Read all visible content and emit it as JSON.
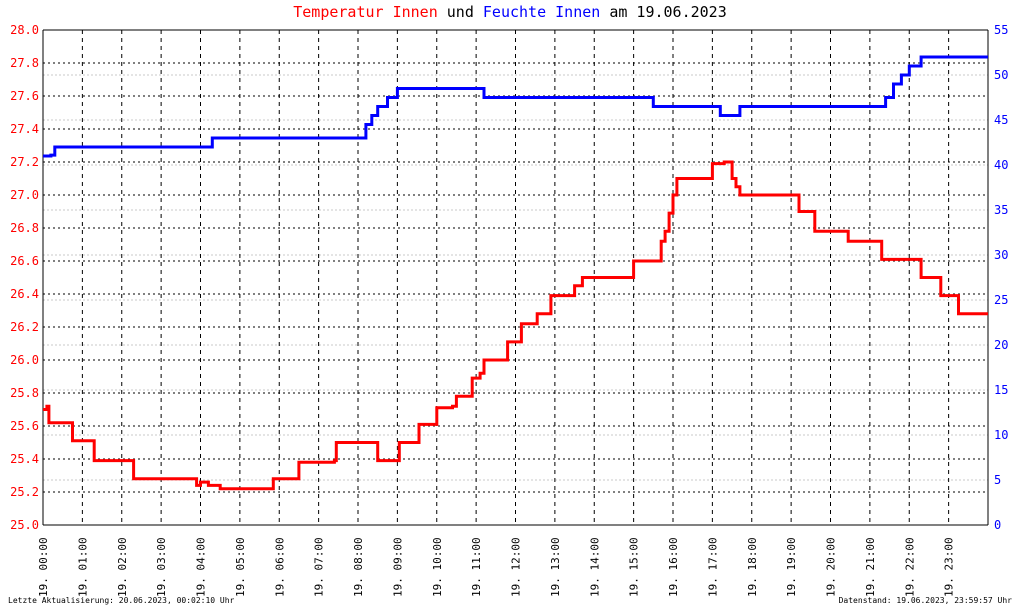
{
  "title": {
    "part1": "Temperatur Innen",
    "part2": " und ",
    "part3": "Feuchte Innen",
    "part4": " am 19.06.2023",
    "color_temp": "#ff0000",
    "color_hum": "#0000ff",
    "color_text": "#000000"
  },
  "footer": {
    "left": "Letzte Aktualisierung: 20.06.2023, 00:02:10 Uhr",
    "right": "Datenstand: 19.06.2023, 23:59:57 Uhr"
  },
  "chart_data": {
    "type": "line",
    "title": "Temperatur Innen und Feuchte Innen am 19.06.2023",
    "x_ticks": [
      "19. 00:00",
      "19. 01:00",
      "19. 02:00",
      "19. 03:00",
      "19. 04:00",
      "19. 05:00",
      "19. 06:00",
      "19. 07:00",
      "19. 08:00",
      "19. 09:00",
      "19. 10:00",
      "19. 11:00",
      "19. 12:00",
      "19. 13:00",
      "19. 14:00",
      "19. 15:00",
      "19. 16:00",
      "19. 17:00",
      "19. 18:00",
      "19. 19:00",
      "19. 20:00",
      "19. 21:00",
      "19. 22:00",
      "19. 23:00"
    ],
    "y_left": {
      "min": 25.0,
      "max": 28.0,
      "ticks": [
        "25.0",
        "25.2",
        "25.4",
        "25.6",
        "25.8",
        "26.0",
        "26.2",
        "26.4",
        "26.6",
        "26.8",
        "27.0",
        "27.2",
        "27.4",
        "27.6",
        "27.8",
        "28.0"
      ],
      "color": "#ff0000"
    },
    "y_right": {
      "min": 0,
      "max": 55,
      "ticks": [
        "0",
        "5",
        "10",
        "15",
        "20",
        "25",
        "30",
        "35",
        "40",
        "45",
        "50",
        "55"
      ],
      "color": "#0000ff"
    },
    "grid": true,
    "series": [
      {
        "name": "Temperatur Innen",
        "axis": "left",
        "color": "#ff0000",
        "points": [
          [
            0.0,
            25.7
          ],
          [
            0.1,
            25.72
          ],
          [
            0.15,
            25.62
          ],
          [
            0.7,
            25.62
          ],
          [
            0.75,
            25.51
          ],
          [
            1.25,
            25.51
          ],
          [
            1.3,
            25.39
          ],
          [
            2.2,
            25.39
          ],
          [
            2.3,
            25.28
          ],
          [
            3.8,
            25.28
          ],
          [
            3.9,
            25.24
          ],
          [
            4.0,
            25.26
          ],
          [
            4.2,
            25.24
          ],
          [
            4.5,
            25.22
          ],
          [
            5.8,
            25.22
          ],
          [
            5.85,
            25.28
          ],
          [
            6.4,
            25.28
          ],
          [
            6.5,
            25.38
          ],
          [
            7.4,
            25.39
          ],
          [
            7.45,
            25.5
          ],
          [
            8.45,
            25.5
          ],
          [
            8.5,
            25.39
          ],
          [
            9.0,
            25.39
          ],
          [
            9.05,
            25.5
          ],
          [
            9.5,
            25.5
          ],
          [
            9.55,
            25.61
          ],
          [
            9.95,
            25.61
          ],
          [
            10.0,
            25.71
          ],
          [
            10.4,
            25.72
          ],
          [
            10.5,
            25.78
          ],
          [
            10.85,
            25.78
          ],
          [
            10.9,
            25.89
          ],
          [
            11.1,
            25.92
          ],
          [
            11.2,
            26.0
          ],
          [
            11.7,
            26.0
          ],
          [
            11.8,
            26.11
          ],
          [
            12.1,
            26.11
          ],
          [
            12.15,
            26.22
          ],
          [
            12.5,
            26.22
          ],
          [
            12.55,
            26.28
          ],
          [
            12.85,
            26.28
          ],
          [
            12.9,
            26.39
          ],
          [
            13.4,
            26.39
          ],
          [
            13.5,
            26.45
          ],
          [
            13.7,
            26.5
          ],
          [
            14.9,
            26.5
          ],
          [
            15.0,
            26.6
          ],
          [
            15.6,
            26.6
          ],
          [
            15.7,
            26.72
          ],
          [
            15.8,
            26.78
          ],
          [
            15.9,
            26.89
          ],
          [
            16.0,
            27.0
          ],
          [
            16.1,
            27.1
          ],
          [
            16.9,
            27.1
          ],
          [
            17.0,
            27.19
          ],
          [
            17.3,
            27.2
          ],
          [
            17.5,
            27.1
          ],
          [
            17.6,
            27.05
          ],
          [
            17.7,
            27.0
          ],
          [
            19.1,
            27.0
          ],
          [
            19.2,
            26.9
          ],
          [
            19.5,
            26.9
          ],
          [
            19.6,
            26.78
          ],
          [
            20.4,
            26.78
          ],
          [
            20.45,
            26.72
          ],
          [
            21.2,
            26.72
          ],
          [
            21.3,
            26.61
          ],
          [
            22.2,
            26.61
          ],
          [
            22.3,
            26.5
          ],
          [
            22.7,
            26.5
          ],
          [
            22.8,
            26.39
          ],
          [
            23.2,
            26.39
          ],
          [
            23.25,
            26.28
          ],
          [
            24.0,
            26.28
          ]
        ]
      },
      {
        "name": "Feuchte Innen",
        "axis": "right",
        "color": "#0000ff",
        "points": [
          [
            0.0,
            41.0
          ],
          [
            0.2,
            41.1
          ],
          [
            0.3,
            42.0
          ],
          [
            4.2,
            42.0
          ],
          [
            4.3,
            43.0
          ],
          [
            8.1,
            43.0
          ],
          [
            8.2,
            44.5
          ],
          [
            8.35,
            45.5
          ],
          [
            8.5,
            46.5
          ],
          [
            8.75,
            47.5
          ],
          [
            9.0,
            48.5
          ],
          [
            11.1,
            48.5
          ],
          [
            11.2,
            47.5
          ],
          [
            15.4,
            47.5
          ],
          [
            15.5,
            46.5
          ],
          [
            17.1,
            46.5
          ],
          [
            17.2,
            45.5
          ],
          [
            17.6,
            45.5
          ],
          [
            17.7,
            46.5
          ],
          [
            21.3,
            46.5
          ],
          [
            21.4,
            47.5
          ],
          [
            21.6,
            49.0
          ],
          [
            21.8,
            50.0
          ],
          [
            22.0,
            51.0
          ],
          [
            22.3,
            52.0
          ],
          [
            24.0,
            52.0
          ]
        ]
      }
    ]
  }
}
